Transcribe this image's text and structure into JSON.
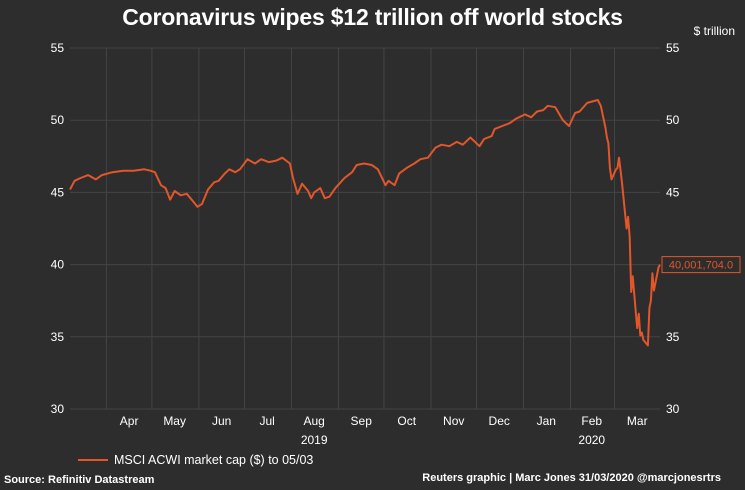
{
  "title": "Coronavirus wipes $12 trillion off world stocks",
  "unit_label": "$ trillion",
  "source": "Source: Refinitiv Datastream",
  "credit": "Reuters graphic | Marc Jones 31/03/2020 @marcjonesrtrs",
  "colors": {
    "background": "#2d2d2d",
    "line": "#e2562b",
    "grid": "#444444"
  },
  "chart_data": {
    "type": "line",
    "title": "Coronavirus wipes $12 trillion off world stocks",
    "ylabel": "$ trillion",
    "ylim": [
      30,
      55
    ],
    "yticks": [
      "30",
      "35",
      "40",
      "45",
      "50",
      "55"
    ],
    "xlim": [
      "2019-03-08",
      "2020-03-31"
    ],
    "x_tick_labels": [
      {
        "label": "Apr",
        "date": "2019-04-16"
      },
      {
        "label": "May",
        "date": "2019-05-16"
      },
      {
        "label": "Jun",
        "date": "2019-06-16"
      },
      {
        "label": "Jul",
        "date": "2019-07-16"
      },
      {
        "label": "Aug",
        "date": "2019-08-16"
      },
      {
        "label": "Sep",
        "date": "2019-09-16"
      },
      {
        "label": "Oct",
        "date": "2019-10-16"
      },
      {
        "label": "Nov",
        "date": "2019-11-16"
      },
      {
        "label": "Dec",
        "date": "2019-12-16"
      },
      {
        "label": "Jan",
        "date": "2020-01-16"
      },
      {
        "label": "Feb",
        "date": "2020-02-15"
      },
      {
        "label": "Mar",
        "date": "2020-03-16"
      }
    ],
    "year_labels": [
      {
        "label": "2019",
        "date": "2019-08-16"
      },
      {
        "label": "2020",
        "date": "2020-02-15"
      }
    ],
    "month_boundaries": [
      "2019-04-01",
      "2019-05-01",
      "2019-06-01",
      "2019-07-01",
      "2019-08-01",
      "2019-09-01",
      "2019-10-01",
      "2019-11-01",
      "2019-12-01",
      "2020-01-01",
      "2020-02-01",
      "2020-03-01"
    ],
    "grid": true,
    "legend_position": "bottom-left",
    "end_label": "40,001,704.0",
    "series": [
      {
        "name": "MSCI ACWI market cap ($) to 05/03",
        "points": [
          [
            "2019-03-08",
            45.2
          ],
          [
            "2019-03-11",
            45.8
          ],
          [
            "2019-03-15",
            46.0
          ],
          [
            "2019-03-20",
            46.2
          ],
          [
            "2019-03-25",
            45.9
          ],
          [
            "2019-03-29",
            46.2
          ],
          [
            "2019-04-05",
            46.4
          ],
          [
            "2019-04-12",
            46.5
          ],
          [
            "2019-04-19",
            46.5
          ],
          [
            "2019-04-26",
            46.6
          ],
          [
            "2019-04-30",
            46.5
          ],
          [
            "2019-05-03",
            46.4
          ],
          [
            "2019-05-07",
            45.5
          ],
          [
            "2019-05-10",
            45.3
          ],
          [
            "2019-05-13",
            44.5
          ],
          [
            "2019-05-16",
            45.1
          ],
          [
            "2019-05-20",
            44.8
          ],
          [
            "2019-05-24",
            44.9
          ],
          [
            "2019-05-28",
            44.4
          ],
          [
            "2019-05-31",
            44.0
          ],
          [
            "2019-06-03",
            44.2
          ],
          [
            "2019-06-07",
            45.2
          ],
          [
            "2019-06-11",
            45.7
          ],
          [
            "2019-06-14",
            45.8
          ],
          [
            "2019-06-18",
            46.3
          ],
          [
            "2019-06-21",
            46.6
          ],
          [
            "2019-06-25",
            46.4
          ],
          [
            "2019-06-28",
            46.6
          ],
          [
            "2019-07-03",
            47.3
          ],
          [
            "2019-07-08",
            47.0
          ],
          [
            "2019-07-12",
            47.3
          ],
          [
            "2019-07-17",
            47.1
          ],
          [
            "2019-07-22",
            47.2
          ],
          [
            "2019-07-26",
            47.4
          ],
          [
            "2019-07-31",
            47.0
          ],
          [
            "2019-08-02",
            46.0
          ],
          [
            "2019-08-05",
            44.9
          ],
          [
            "2019-08-08",
            45.6
          ],
          [
            "2019-08-12",
            45.1
          ],
          [
            "2019-08-14",
            44.6
          ],
          [
            "2019-08-16",
            45.0
          ],
          [
            "2019-08-20",
            45.3
          ],
          [
            "2019-08-23",
            44.6
          ],
          [
            "2019-08-26",
            44.7
          ],
          [
            "2019-08-30",
            45.3
          ],
          [
            "2019-09-05",
            46.0
          ],
          [
            "2019-09-10",
            46.4
          ],
          [
            "2019-09-13",
            46.9
          ],
          [
            "2019-09-18",
            47.0
          ],
          [
            "2019-09-23",
            46.9
          ],
          [
            "2019-09-27",
            46.6
          ],
          [
            "2019-10-02",
            45.5
          ],
          [
            "2019-10-04",
            45.8
          ],
          [
            "2019-10-08",
            45.5
          ],
          [
            "2019-10-11",
            46.3
          ],
          [
            "2019-10-16",
            46.7
          ],
          [
            "2019-10-21",
            47.0
          ],
          [
            "2019-10-25",
            47.3
          ],
          [
            "2019-10-30",
            47.4
          ],
          [
            "2019-11-04",
            48.1
          ],
          [
            "2019-11-08",
            48.3
          ],
          [
            "2019-11-13",
            48.2
          ],
          [
            "2019-11-18",
            48.5
          ],
          [
            "2019-11-22",
            48.3
          ],
          [
            "2019-11-27",
            48.8
          ],
          [
            "2019-12-03",
            48.2
          ],
          [
            "2019-12-06",
            48.7
          ],
          [
            "2019-12-11",
            48.9
          ],
          [
            "2019-12-13",
            49.4
          ],
          [
            "2019-12-18",
            49.6
          ],
          [
            "2019-12-23",
            49.8
          ],
          [
            "2019-12-27",
            50.1
          ],
          [
            "2020-01-02",
            50.4
          ],
          [
            "2020-01-06",
            50.2
          ],
          [
            "2020-01-10",
            50.6
          ],
          [
            "2020-01-14",
            50.7
          ],
          [
            "2020-01-17",
            51.0
          ],
          [
            "2020-01-22",
            50.9
          ],
          [
            "2020-01-27",
            50.0
          ],
          [
            "2020-01-31",
            49.6
          ],
          [
            "2020-02-04",
            50.5
          ],
          [
            "2020-02-07",
            50.6
          ],
          [
            "2020-02-12",
            51.2
          ],
          [
            "2020-02-19",
            51.4
          ],
          [
            "2020-02-21",
            51.0
          ],
          [
            "2020-02-24",
            49.5
          ],
          [
            "2020-02-25",
            48.8
          ],
          [
            "2020-02-26",
            48.4
          ],
          [
            "2020-02-27",
            46.7
          ],
          [
            "2020-02-28",
            45.9
          ],
          [
            "2020-03-02",
            46.6
          ],
          [
            "2020-03-03",
            46.7
          ],
          [
            "2020-03-04",
            47.4
          ],
          [
            "2020-03-05",
            46.5
          ],
          [
            "2020-03-06",
            45.6
          ],
          [
            "2020-03-09",
            42.5
          ],
          [
            "2020-03-10",
            43.3
          ],
          [
            "2020-03-11",
            41.9
          ],
          [
            "2020-03-12",
            38.1
          ],
          [
            "2020-03-13",
            39.2
          ],
          [
            "2020-03-16",
            35.6
          ],
          [
            "2020-03-17",
            36.6
          ],
          [
            "2020-03-18",
            35.1
          ],
          [
            "2020-03-19",
            35.3
          ],
          [
            "2020-03-20",
            34.8
          ],
          [
            "2020-03-23",
            34.4
          ],
          [
            "2020-03-24",
            37.0
          ],
          [
            "2020-03-25",
            37.5
          ],
          [
            "2020-03-26",
            39.4
          ],
          [
            "2020-03-27",
            38.2
          ],
          [
            "2020-03-30",
            39.8
          ],
          [
            "2020-03-31",
            40.0
          ]
        ]
      }
    ]
  }
}
